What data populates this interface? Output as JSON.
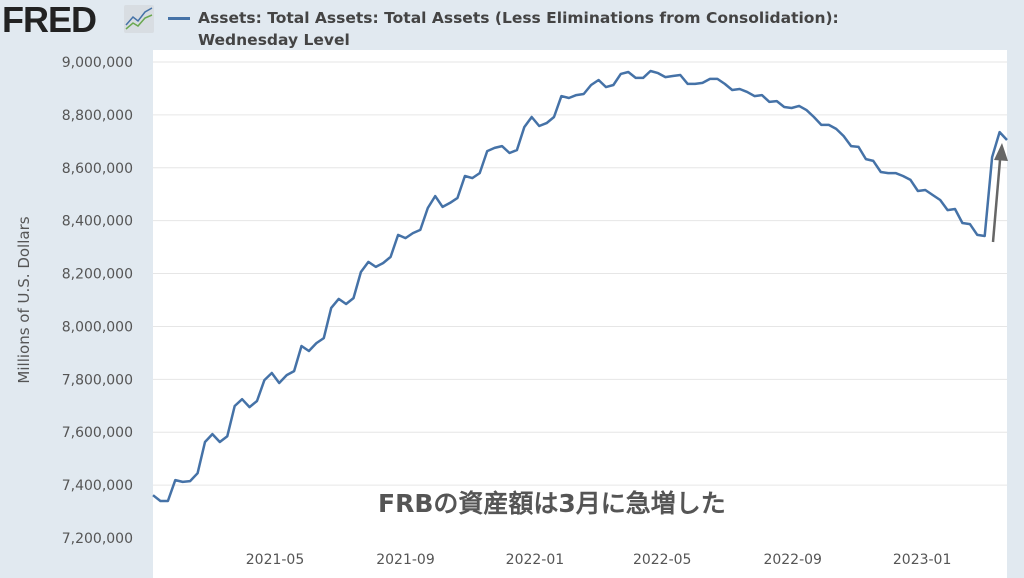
{
  "brand": {
    "logo": "FRED"
  },
  "colors": {
    "line": "#4572a7",
    "grid": "#e6e6e6",
    "plot_bg": "#ffffff",
    "page_bg": "#e1e9f0",
    "arrow": "#666666"
  },
  "annotation": "FRBの資産額は3月に急増した",
  "chart_data": {
    "type": "line",
    "title": "",
    "legend": [
      {
        "name": "Assets: Total Assets: Total Assets (Less Eliminations from Consolidation): Wednesday Level",
        "line1": "Assets: Total Assets: Total Assets (Less Eliminations from Consolidation):",
        "line2": "Wednesday Level"
      }
    ],
    "legend_position": "top",
    "xlabel": "",
    "ylabel": "Millions of U.S. Dollars",
    "ylim": [
      7200000,
      9000000
    ],
    "yticks": [
      7200000,
      7400000,
      7600000,
      7800000,
      8000000,
      8200000,
      8400000,
      8600000,
      8800000,
      9000000
    ],
    "ytick_labels": [
      "7,200,000",
      "7,400,000",
      "7,600,000",
      "7,800,000",
      "8,000,000",
      "8,200,000",
      "8,400,000",
      "8,600,000",
      "8,800,000",
      "9,000,000"
    ],
    "xticks": [
      "2021-05-01",
      "2021-09-01",
      "2022-01-01",
      "2022-05-01",
      "2022-09-01",
      "2023-01-01"
    ],
    "xtick_labels": [
      "2021-05",
      "2021-09",
      "2022-01",
      "2022-05",
      "2022-09",
      "2023-01"
    ],
    "x_start": "2021-01-06",
    "x_step_days": 7,
    "grid": true,
    "series": [
      {
        "name": "Total Assets",
        "values": [
          7362000,
          7340000,
          7340000,
          7419000,
          7412000,
          7415000,
          7445000,
          7563000,
          7593000,
          7563000,
          7585000,
          7699000,
          7725000,
          7695000,
          7718000,
          7797000,
          7824000,
          7786000,
          7816000,
          7831000,
          7926000,
          7907000,
          7937000,
          7956000,
          8070000,
          8104000,
          8085000,
          8107000,
          8206000,
          8244000,
          8225000,
          8240000,
          8263000,
          8346000,
          8334000,
          8353000,
          8365000,
          8448000,
          8493000,
          8452000,
          8467000,
          8486000,
          8569000,
          8561000,
          8580000,
          8663000,
          8675000,
          8682000,
          8656000,
          8667000,
          8754000,
          8792000,
          8758000,
          8769000,
          8792000,
          8871000,
          8864000,
          8875000,
          8879000,
          8913000,
          8932000,
          8905000,
          8913000,
          8955000,
          8962000,
          8940000,
          8940000,
          8966000,
          8958000,
          8943000,
          8947000,
          8951000,
          8917000,
          8917000,
          8921000,
          8936000,
          8936000,
          8917000,
          8894000,
          8898000,
          8887000,
          8871000,
          8875000,
          8849000,
          8852000,
          8830000,
          8826000,
          8834000,
          8818000,
          8792000,
          8762000,
          8762000,
          8747000,
          8720000,
          8682000,
          8679000,
          8633000,
          8626000,
          8584000,
          8580000,
          8580000,
          8569000,
          8554000,
          8512000,
          8516000,
          8497000,
          8478000,
          8440000,
          8444000,
          8391000,
          8387000,
          8346000,
          8342000,
          8640000,
          8735000,
          8705000
        ]
      }
    ]
  }
}
